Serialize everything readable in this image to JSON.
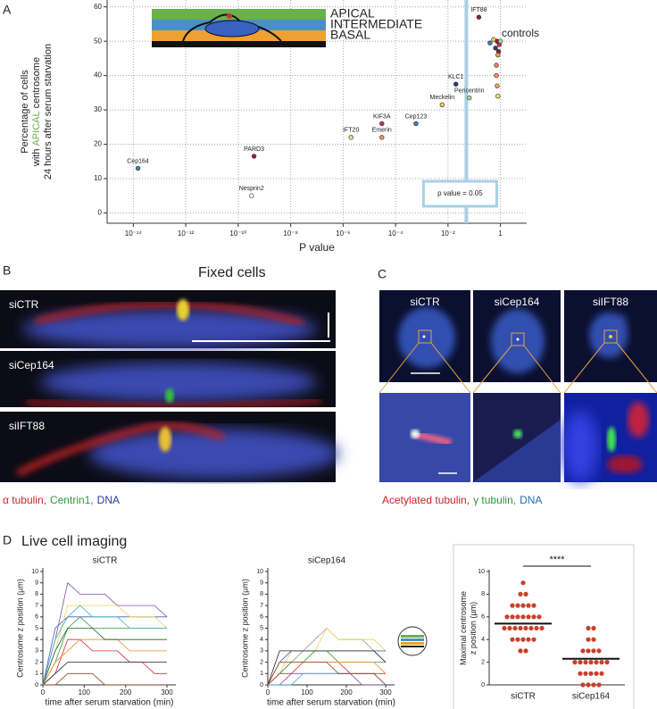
{
  "panel_labels": [
    "A",
    "B",
    "C",
    "D"
  ],
  "fixed_cells": {
    "title": "Fixed cells",
    "images": [
      "siCTR",
      "siCep164",
      "siIFT88"
    ],
    "legend": [
      {
        "text": "α tubulin,",
        "color": "#d0202a"
      },
      {
        "text": "Centrin1,",
        "color": "#2a9a3a"
      },
      {
        "text": "DNA",
        "color": "#2a3aa0"
      }
    ]
  },
  "cilia": {
    "images": [
      "siCTR",
      "siCep164",
      "siIFT88"
    ],
    "legend": [
      {
        "text": "Acetylated tubulin,",
        "color": "#d0202a"
      },
      {
        "text": "γ tubulin,",
        "color": "#2a9a3a"
      },
      {
        "text": "DNA",
        "color": "#2a6ab0"
      }
    ]
  },
  "live_title": "Live cell imaging",
  "chart_data": [
    {
      "type": "scatter",
      "x_label": "P value",
      "y_label": [
        "Percentage of cells",
        [
          "with",
          "APICAL",
          "centrosome"
        ],
        "24 hours after serum starvation"
      ],
      "zones": [
        {
          "label": "APICAL",
          "color": "#6ab04c"
        },
        {
          "label": "INTERMEDIATE",
          "color": "#4a90c8"
        },
        {
          "label": "BASAL",
          "color": "#f0a030"
        }
      ],
      "xscale": "log",
      "grid": true,
      "xlim": [
        1e-15,
        10
      ],
      "ylim": [
        -3,
        62
      ],
      "xticks": [
        {
          "value": 1e-14,
          "label": "10⁻¹⁴"
        },
        {
          "value": 1e-12,
          "label": "10⁻¹²"
        },
        {
          "value": 1e-10,
          "label": "10⁻¹⁰"
        },
        {
          "value": 1e-08,
          "label": "10⁻⁸"
        },
        {
          "value": 1e-06,
          "label": "10⁻⁶"
        },
        {
          "value": 0.0001,
          "label": "10⁻⁴"
        },
        {
          "value": 0.01,
          "label": "10⁻²"
        },
        1
      ],
      "yticks": [
        0,
        10,
        20,
        30,
        40,
        50,
        60
      ],
      "threshold": {
        "value": 0.05,
        "label": "p value = 0.05",
        "color": "#a8d0e6"
      },
      "points": [
        {
          "label": "Cep164",
          "x": 1.5e-14,
          "y": 13,
          "color": "#3d8c8c"
        },
        {
          "label": "PARD3",
          "x": 4e-10,
          "y": 16.5,
          "color": "#a02030"
        },
        {
          "label": "Nesprin2",
          "x": 3.2e-10,
          "y": 5,
          "color": "#ffffff"
        },
        {
          "label": "IFT20",
          "x": 2e-06,
          "y": 22,
          "color": "#e8d87a"
        },
        {
          "label": "KIF3A",
          "x": 3e-05,
          "y": 26,
          "color": "#c83040"
        },
        {
          "label": "Emerin",
          "x": 3e-05,
          "y": 22,
          "color": "#f09060"
        },
        {
          "label": "Cep123",
          "x": 0.0006,
          "y": 26,
          "color": "#3a7ac0"
        },
        {
          "label": "Meckelin",
          "x": 0.006,
          "y": 31.5,
          "color": "#e8d050"
        },
        {
          "label": "KLC1",
          "x": 0.02,
          "y": 37.5,
          "color": "#2a3a80"
        },
        {
          "label": "Pericentrin",
          "x": 0.065,
          "y": 33.5,
          "color": "#a8d890"
        },
        {
          "label": "IFT88",
          "x": 0.15,
          "y": 57,
          "color": "#902030"
        }
      ],
      "controls": {
        "label": "controls",
        "x": [
          0.4,
          0.55,
          0.75,
          0.9,
          1,
          0.65,
          0.85,
          0.8,
          0.7,
          0.7,
          0.75,
          0.8
        ],
        "y": [
          49.5,
          50.5,
          50,
          49,
          50,
          48,
          47,
          46,
          43,
          40,
          37,
          34
        ],
        "colors": [
          "#3a7ac0",
          "#f0d050",
          "#902030",
          "#c83040",
          "#a8d890",
          "#2a3a80",
          "#902030",
          "#e8a050",
          "#e88060",
          "#f09050",
          "#f0a060",
          "#e8e080"
        ]
      }
    },
    {
      "type": "line",
      "title": "siCTR",
      "x_label": "time after serum starvation (min)",
      "y_label": "Centrosome z position (µm)",
      "xlim": [
        0,
        300
      ],
      "ylim": [
        0,
        10
      ],
      "xticks": [
        0,
        100,
        200,
        300
      ],
      "yticks": [
        0,
        1,
        2,
        3,
        4,
        5,
        6,
        7,
        8,
        9,
        10
      ],
      "x": [
        0,
        30,
        60,
        90,
        120,
        150,
        180,
        210,
        240,
        270,
        300
      ],
      "series": [
        {
          "color": "#7b4fa0",
          "values": [
            0,
            4,
            9,
            8,
            8,
            8,
            7,
            7,
            7,
            7,
            6
          ]
        },
        {
          "color": "#3b5fc0",
          "values": [
            0,
            5,
            6,
            6,
            6,
            6,
            6,
            6,
            6,
            6,
            6
          ]
        },
        {
          "color": "#e8d44d",
          "values": [
            0,
            3,
            7,
            7,
            7,
            7,
            7,
            6,
            6,
            6,
            5
          ]
        },
        {
          "color": "#3a9a3a",
          "values": [
            0,
            2,
            5,
            6,
            5,
            5,
            5,
            5,
            5,
            5,
            5
          ]
        },
        {
          "color": "#d03030",
          "values": [
            0,
            1,
            4,
            4,
            3,
            3,
            3,
            2,
            2,
            1,
            1
          ]
        },
        {
          "color": "#f08a2a",
          "values": [
            0,
            2,
            3,
            4,
            4,
            4,
            4,
            3,
            3,
            3,
            3
          ]
        },
        {
          "color": "#1e5c2e",
          "values": [
            0,
            3,
            5,
            5,
            5,
            4,
            4,
            4,
            4,
            4,
            4
          ]
        },
        {
          "color": "#222222",
          "values": [
            0,
            1,
            2,
            2,
            2,
            2,
            2,
            2,
            2,
            2,
            2
          ]
        },
        {
          "color": "#4ab0c8",
          "values": [
            0,
            4,
            6,
            7,
            6,
            6,
            6,
            5,
            5,
            5,
            5
          ]
        },
        {
          "color": "#8a4a2a",
          "values": [
            0,
            0,
            1,
            1,
            1,
            0,
            0,
            0,
            0,
            0,
            0
          ]
        }
      ]
    },
    {
      "type": "line",
      "title": "siCep164",
      "x_label": "time after serum starvation (min)",
      "y_label": "Centrosome z position (µm)",
      "xlim": [
        0,
        300
      ],
      "ylim": [
        0,
        10
      ],
      "xticks": [
        0,
        100,
        200,
        300
      ],
      "yticks": [
        0,
        1,
        2,
        3,
        4,
        5,
        6,
        7,
        8,
        9,
        10
      ],
      "x": [
        0,
        30,
        60,
        90,
        120,
        150,
        180,
        210,
        240,
        270,
        300
      ],
      "series": [
        {
          "color": "#999999",
          "values": [
            0,
            1,
            2,
            3,
            4,
            5,
            4,
            4,
            4,
            3,
            3
          ]
        },
        {
          "color": "#e8d44d",
          "values": [
            0,
            1,
            3,
            3,
            3,
            5,
            4,
            4,
            4,
            4,
            3
          ]
        },
        {
          "color": "#3b5fc0",
          "values": [
            0,
            2,
            3,
            3,
            3,
            3,
            3,
            3,
            3,
            3,
            3
          ]
        },
        {
          "color": "#3a9a3a",
          "values": [
            0,
            1,
            2,
            2,
            3,
            3,
            2,
            2,
            2,
            2,
            2
          ]
        },
        {
          "color": "#d03030",
          "values": [
            0,
            1,
            1,
            2,
            2,
            2,
            2,
            1,
            1,
            1,
            1
          ]
        },
        {
          "color": "#f08a2a",
          "values": [
            0,
            2,
            2,
            2,
            2,
            2,
            2,
            2,
            2,
            2,
            1
          ]
        },
        {
          "color": "#7b4fa0",
          "values": [
            0,
            0,
            1,
            1,
            1,
            1,
            1,
            1,
            0,
            0,
            0
          ]
        },
        {
          "color": "#222222",
          "values": [
            0,
            3,
            3,
            3,
            3,
            3,
            3,
            3,
            3,
            3,
            2
          ]
        },
        {
          "color": "#4ab0c8",
          "values": [
            0,
            0,
            0,
            1,
            1,
            1,
            1,
            1,
            1,
            1,
            0
          ]
        },
        {
          "color": "#8a4a2a",
          "values": [
            0,
            2,
            2,
            2,
            2,
            2,
            1,
            1,
            1,
            1,
            0
          ]
        }
      ]
    },
    {
      "type": "strip",
      "y_label": [
        "Maximal centrosome",
        "z position (µm)"
      ],
      "categories": [
        "siCTR",
        "siCep164"
      ],
      "ylim": [
        0,
        10
      ],
      "yticks": [
        0,
        2,
        4,
        6,
        8,
        10
      ],
      "significance": "****",
      "series": [
        {
          "color": "#c8402a",
          "mean": 5.4,
          "values": [
            9,
            8,
            8,
            7,
            7,
            7,
            7,
            7,
            6,
            6,
            6,
            6,
            6,
            6,
            6,
            5,
            5,
            5,
            5,
            5,
            5,
            5,
            5,
            4,
            4,
            4,
            4,
            4,
            3,
            3
          ]
        },
        {
          "color": "#c8402a",
          "mean": 2.3,
          "values": [
            5,
            5,
            4,
            4,
            3,
            3,
            3,
            3,
            2,
            2,
            2,
            2,
            2,
            2,
            2,
            1,
            1,
            1,
            1,
            1,
            0,
            0,
            0,
            0
          ]
        }
      ]
    }
  ]
}
